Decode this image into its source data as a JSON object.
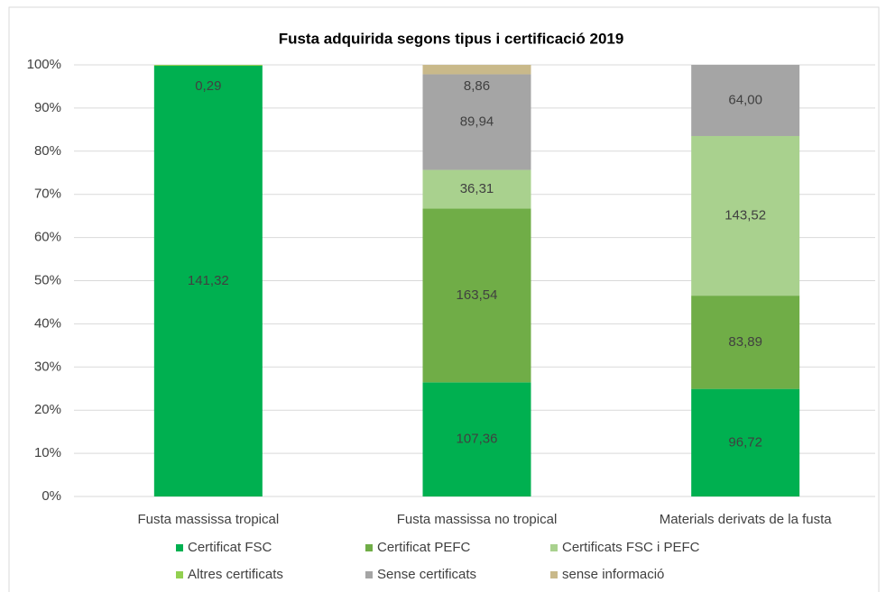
{
  "chart_data": {
    "type": "bar",
    "stacking": "percent",
    "title": "Fusta adquirida segons tipus i certificació 2019",
    "categories": [
      "Fusta massissa tropical",
      "Fusta massissa no tropical",
      "Materials derivats de la fusta"
    ],
    "series": [
      {
        "name": "Certificat FSC",
        "color": "#00b050",
        "values": [
          141.32,
          107.36,
          96.72
        ],
        "value_labels": [
          "141,32",
          "107,36",
          "96,72"
        ]
      },
      {
        "name": "Certificat PEFC",
        "color": "#70ad47",
        "values": [
          null,
          163.54,
          83.89
        ],
        "value_labels": [
          null,
          "163,54",
          "83,89"
        ]
      },
      {
        "name": "Certificats FSC i PEFC",
        "color": "#a9d18e",
        "values": [
          null,
          36.31,
          143.52
        ],
        "value_labels": [
          null,
          "36,31",
          "143,52"
        ]
      },
      {
        "name": "Altres certificats",
        "color": "#92d050",
        "values": [
          0.29,
          null,
          null
        ],
        "value_labels": [
          "0,29",
          null,
          null
        ]
      },
      {
        "name": "Sense certificats",
        "color": "#a5a5a5",
        "values": [
          null,
          89.94,
          64.0
        ],
        "value_labels": [
          null,
          "89,94",
          "64,00"
        ]
      },
      {
        "name": "sense informació",
        "color": "#c9b98a",
        "values": [
          null,
          8.86,
          null
        ],
        "value_labels": [
          null,
          "8,86",
          null
        ]
      }
    ],
    "ylim": [
      0,
      100
    ],
    "yticks": [
      {
        "value": 0,
        "label": "0%"
      },
      {
        "value": 10,
        "label": "10%"
      },
      {
        "value": 20,
        "label": "20%"
      },
      {
        "value": 30,
        "label": "30%"
      },
      {
        "value": 40,
        "label": "40%"
      },
      {
        "value": 50,
        "label": "50%"
      },
      {
        "value": 60,
        "label": "60%"
      },
      {
        "value": 70,
        "label": "70%"
      },
      {
        "value": 80,
        "label": "80%"
      },
      {
        "value": 90,
        "label": "90%"
      },
      {
        "value": 100,
        "label": "100%"
      }
    ],
    "grid": true,
    "legend": "bottom"
  }
}
